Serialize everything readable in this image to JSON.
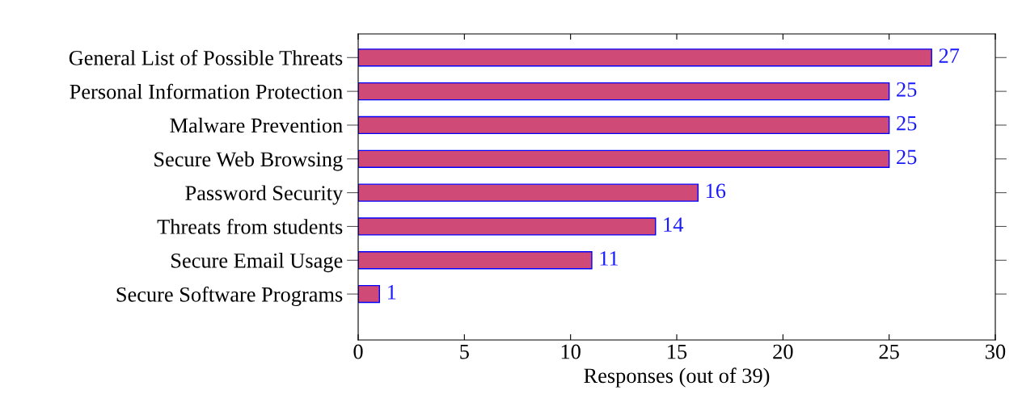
{
  "chart_data": {
    "type": "bar",
    "orientation": "horizontal",
    "xlabel": "Responses (out of 39)",
    "categories": [
      "General List of Possible Threats",
      "Personal Information Protection",
      "Malware Prevention",
      "Secure Web Browsing",
      "Password Security",
      "Threats from students",
      "Secure Email Usage",
      "Secure Software Programs"
    ],
    "values": [
      27,
      25,
      25,
      25,
      16,
      14,
      11,
      1
    ],
    "color": "#d04a77",
    "data_labels": true,
    "xlim": [
      0,
      30
    ],
    "xticks": [
      0,
      5,
      10,
      15,
      20,
      25,
      30
    ],
    "grid": false,
    "legend": false
  }
}
